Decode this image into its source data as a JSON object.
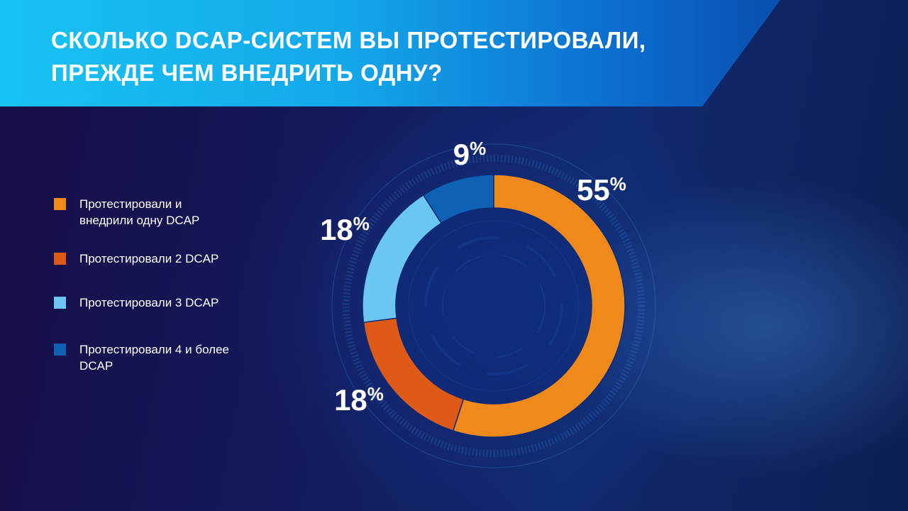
{
  "header": {
    "title_line1": "СКОЛЬКО DCAP-СИСТЕМ ВЫ ПРОТЕСТИРОВАЛИ,",
    "title_line2": "ПРЕЖДЕ ЧЕМ ВНЕДРИТЬ ОДНУ?"
  },
  "colors": {
    "header_start": "#18c3f3",
    "header_end": "#0a4fb0",
    "background": "#14195a"
  },
  "chart_data": {
    "type": "pie",
    "title": "СКОЛЬКО DCAP-СИСТЕМ ВЫ ПРОТЕСТИРОВАЛИ, ПРЕЖДЕ ЧЕМ ВНЕДРИТЬ ОДНУ?",
    "style": "donut",
    "legend_position": "left",
    "start": "top",
    "direction": "clockwise",
    "slices": [
      {
        "name": "Протестировали и внедрили одну DCAP",
        "legend_lines": [
          "Протестировали  и",
          "внедрили  одну DCAP"
        ],
        "value": 55,
        "label": "55",
        "color": "#ef8a1a"
      },
      {
        "name": "Протестировали 2 DCAP",
        "legend_lines": [
          "Протестировали  2 DCAP"
        ],
        "value": 18,
        "label": "18",
        "color": "#e05a17"
      },
      {
        "name": "Протестировали 3 DCAP",
        "legend_lines": [
          "Протестировали  3 DCAP"
        ],
        "value": 18,
        "label": "18",
        "color": "#6cc6f2"
      },
      {
        "name": "Протестировали 4 и более DCAP",
        "legend_lines": [
          "Протестировали  4 и более",
          "DCAP"
        ],
        "value": 9,
        "label": "9",
        "color": "#0f62b3"
      }
    ],
    "percent_sign": "%"
  }
}
